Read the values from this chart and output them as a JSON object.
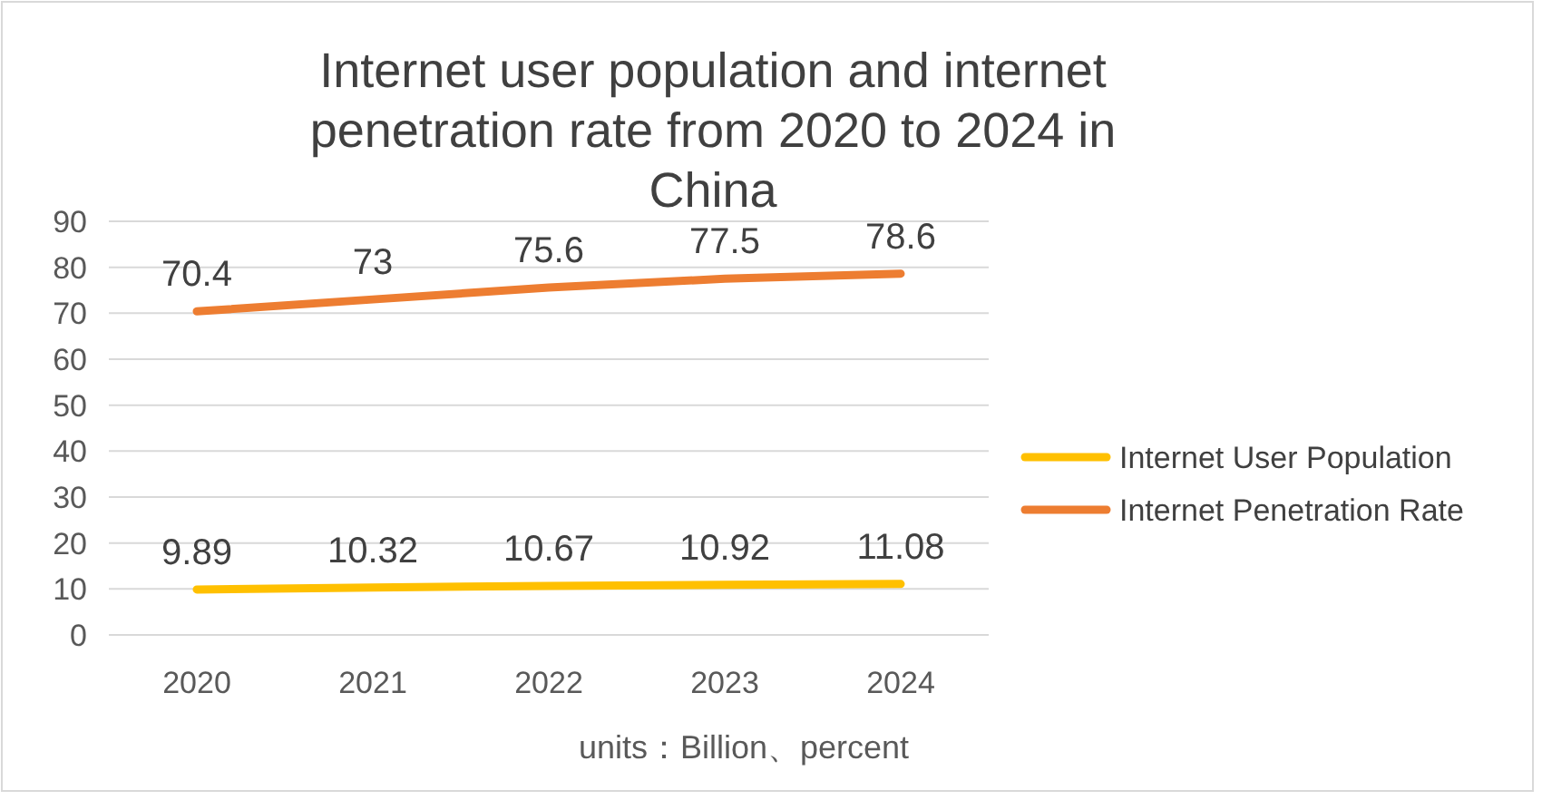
{
  "chart_data": {
    "type": "line",
    "title": "Internet user population and internet penetration rate from 2020 to 2024 in China",
    "categories": [
      "2020",
      "2021",
      "2022",
      "2023",
      "2024"
    ],
    "series": [
      {
        "name": "Internet User Population",
        "color": "#ffc000",
        "values": [
          9.89,
          10.32,
          10.67,
          10.92,
          11.08
        ]
      },
      {
        "name": "Internet Penetration Rate",
        "color": "#ed7d31",
        "values": [
          70.4,
          73,
          75.6,
          77.5,
          78.6
        ]
      }
    ],
    "ylim": [
      0,
      90
    ],
    "yticks": [
      0,
      10,
      20,
      30,
      40,
      50,
      60,
      70,
      80,
      90
    ],
    "grid": "y",
    "legend": "right",
    "data_labels": true,
    "annotations": [
      "units：Billion、percent"
    ]
  }
}
